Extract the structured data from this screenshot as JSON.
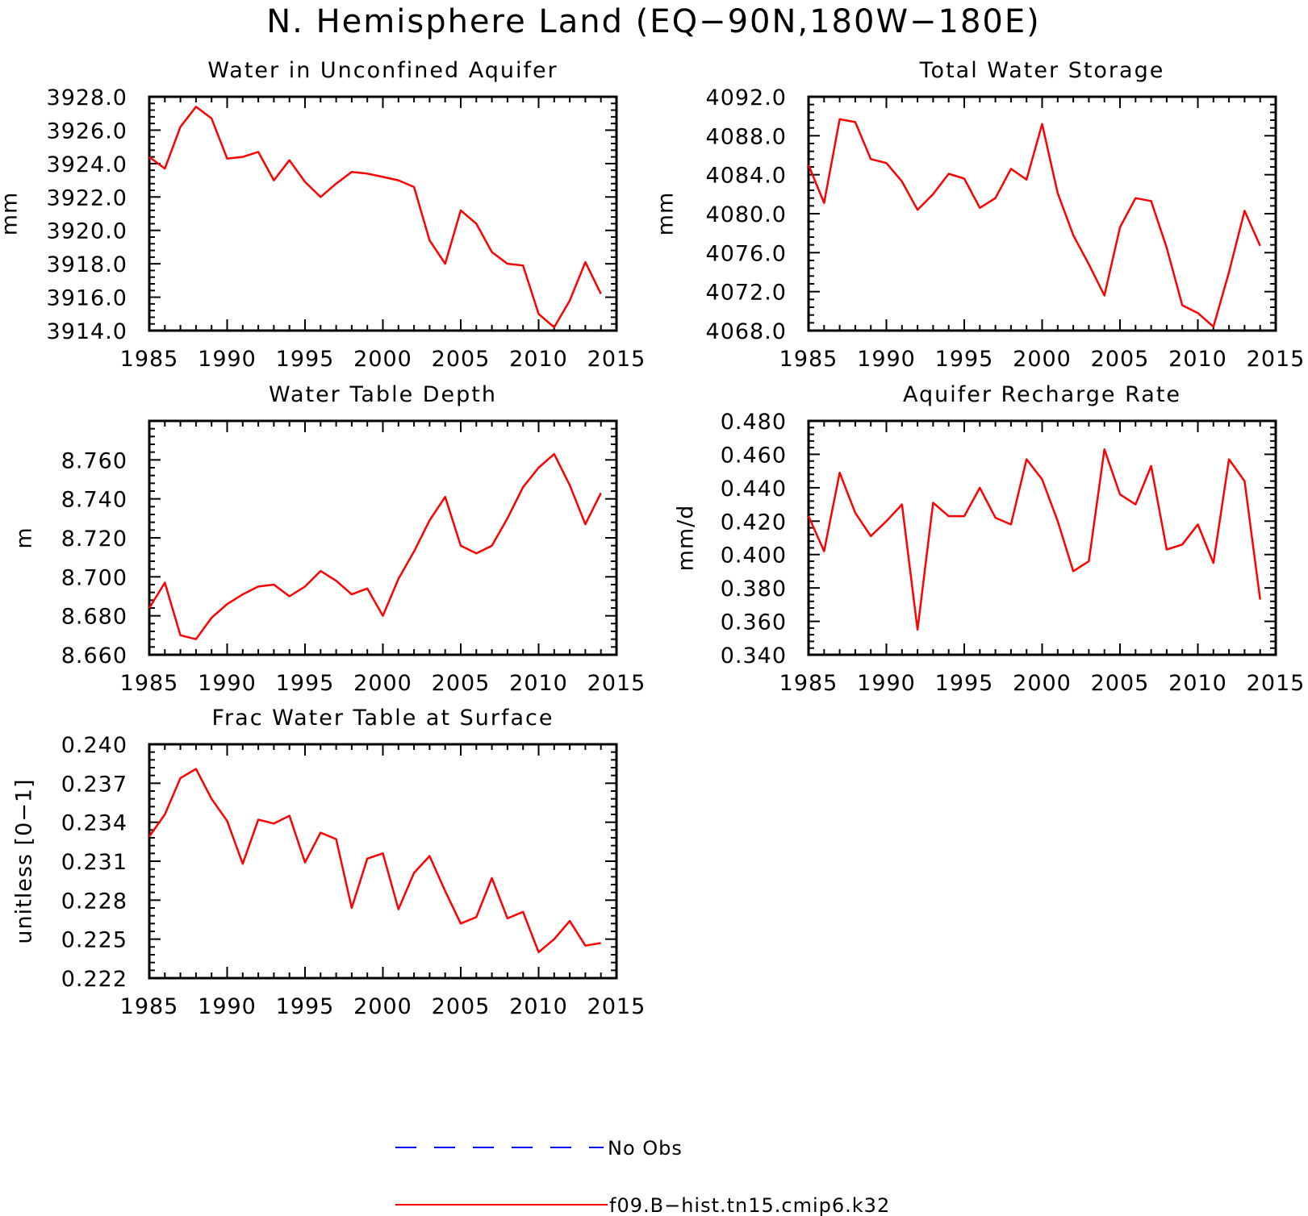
{
  "title": "N. Hemisphere Land (EQ−90N,180W−180E)",
  "series_color": "#ff0000",
  "obs_color": "#0000ff",
  "chart_data": [
    {
      "type": "line",
      "title": "Water in Unconfined Aquifer",
      "ylabel": "mm",
      "xlabel": "",
      "xlim": [
        1985,
        2015
      ],
      "ylim": [
        3914.0,
        3928.0
      ],
      "xticks": [
        1985,
        1990,
        1995,
        2000,
        2005,
        2010,
        2015
      ],
      "yticks": [
        "3914.0",
        "3916.0",
        "3918.0",
        "3920.0",
        "3922.0",
        "3924.0",
        "3926.0",
        "3928.0"
      ],
      "series": [
        {
          "name": "f09.B−hist.tn15.cmip6.k32",
          "x": [
            1985,
            1986,
            1987,
            1988,
            1989,
            1990,
            1991,
            1992,
            1993,
            1994,
            1995,
            1996,
            1997,
            1998,
            1999,
            2000,
            2001,
            2002,
            2003,
            2004,
            2005,
            2006,
            2007,
            2008,
            2009,
            2010,
            2011,
            2012,
            2013,
            2014
          ],
          "y": [
            3924.4,
            3923.7,
            3926.2,
            3927.4,
            3926.7,
            3924.3,
            3924.4,
            3924.7,
            3923.0,
            3924.2,
            3922.9,
            3922.0,
            3922.8,
            3923.5,
            3923.4,
            3923.2,
            3923.0,
            3922.6,
            3919.4,
            3918.0,
            3921.2,
            3920.4,
            3918.7,
            3918.0,
            3917.9,
            3915.0,
            3914.2,
            3915.8,
            3918.1,
            3916.2
          ]
        }
      ]
    },
    {
      "type": "line",
      "title": "Total Water Storage",
      "ylabel": "mm",
      "xlabel": "",
      "xlim": [
        1985,
        2015
      ],
      "ylim": [
        4068.0,
        4092.0
      ],
      "xticks": [
        1985,
        1990,
        1995,
        2000,
        2005,
        2010,
        2015
      ],
      "yticks": [
        "4068.0",
        "4072.0",
        "4076.0",
        "4080.0",
        "4084.0",
        "4088.0",
        "4092.0"
      ],
      "series": [
        {
          "name": "f09.B−hist.tn15.cmip6.k32",
          "x": [
            1985,
            1986,
            1987,
            1988,
            1989,
            1990,
            1991,
            1992,
            1993,
            1994,
            1995,
            1996,
            1997,
            1998,
            1999,
            2000,
            2001,
            2002,
            2003,
            2004,
            2005,
            2006,
            2007,
            2008,
            2009,
            2010,
            2011,
            2012,
            2013,
            2014
          ],
          "y": [
            4085.0,
            4081.1,
            4089.7,
            4089.4,
            4085.6,
            4085.2,
            4083.3,
            4080.4,
            4082.0,
            4084.1,
            4083.6,
            4080.6,
            4081.6,
            4084.6,
            4083.5,
            4089.2,
            4082.1,
            4077.8,
            4074.8,
            4071.6,
            4078.6,
            4081.6,
            4081.3,
            4076.5,
            4070.6,
            4069.8,
            4068.4,
            4074.0,
            4080.3,
            4076.7
          ]
        }
      ]
    },
    {
      "type": "line",
      "title": "Water Table Depth",
      "ylabel": "m",
      "xlabel": "",
      "xlim": [
        1985,
        2015
      ],
      "ylim": [
        8.66,
        8.78
      ],
      "xticks": [
        1985,
        1990,
        1995,
        2000,
        2005,
        2010,
        2015
      ],
      "yticks": [
        "8.660",
        "8.680",
        "8.700",
        "8.720",
        "8.740",
        "8.760"
      ],
      "series": [
        {
          "name": "f09.B−hist.tn15.cmip6.k32",
          "x": [
            1985,
            1986,
            1987,
            1988,
            1989,
            1990,
            1991,
            1992,
            1993,
            1994,
            1995,
            1996,
            1997,
            1998,
            1999,
            2000,
            2001,
            2002,
            2003,
            2004,
            2005,
            2006,
            2007,
            2008,
            2009,
            2010,
            2011,
            2012,
            2013,
            2014
          ],
          "y": [
            8.684,
            8.697,
            8.67,
            8.668,
            8.679,
            8.686,
            8.691,
            8.695,
            8.696,
            8.69,
            8.695,
            8.703,
            8.698,
            8.691,
            8.694,
            8.68,
            8.699,
            8.713,
            8.729,
            8.741,
            8.716,
            8.712,
            8.716,
            8.73,
            8.746,
            8.756,
            8.763,
            8.747,
            8.727,
            8.743
          ]
        }
      ]
    },
    {
      "type": "line",
      "title": "Aquifer Recharge Rate",
      "ylabel": "mm/d",
      "xlabel": "",
      "xlim": [
        1985,
        2015
      ],
      "ylim": [
        0.34,
        0.48
      ],
      "xticks": [
        1985,
        1990,
        1995,
        2000,
        2005,
        2010,
        2015
      ],
      "yticks": [
        "0.340",
        "0.360",
        "0.380",
        "0.400",
        "0.420",
        "0.440",
        "0.460",
        "0.480"
      ],
      "series": [
        {
          "name": "f09.B−hist.tn15.cmip6.k32",
          "x": [
            1985,
            1986,
            1987,
            1988,
            1989,
            1990,
            1991,
            1992,
            1993,
            1994,
            1995,
            1996,
            1997,
            1998,
            1999,
            2000,
            2001,
            2002,
            2003,
            2004,
            2005,
            2006,
            2007,
            2008,
            2009,
            2010,
            2011,
            2012,
            2013,
            2014
          ],
          "y": [
            0.423,
            0.402,
            0.449,
            0.425,
            0.411,
            0.42,
            0.43,
            0.355,
            0.431,
            0.423,
            0.423,
            0.44,
            0.422,
            0.418,
            0.457,
            0.445,
            0.42,
            0.39,
            0.396,
            0.463,
            0.436,
            0.43,
            0.453,
            0.403,
            0.406,
            0.418,
            0.395,
            0.457,
            0.444,
            0.373
          ]
        }
      ]
    },
    {
      "type": "line",
      "title": "Frac Water Table at Surface",
      "ylabel": "unitless [0−1]",
      "xlabel": "",
      "xlim": [
        1985,
        2015
      ],
      "ylim": [
        0.222,
        0.24
      ],
      "xticks": [
        1985,
        1990,
        1995,
        2000,
        2005,
        2010,
        2015
      ],
      "yticks": [
        "0.222",
        "0.225",
        "0.228",
        "0.231",
        "0.234",
        "0.237",
        "0.240"
      ],
      "series": [
        {
          "name": "f09.B−hist.tn15.cmip6.k32",
          "x": [
            1985,
            1986,
            1987,
            1988,
            1989,
            1990,
            1991,
            1992,
            1993,
            1994,
            1995,
            1996,
            1997,
            1998,
            1999,
            2000,
            2001,
            2002,
            2003,
            2004,
            2005,
            2006,
            2007,
            2008,
            2009,
            2010,
            2011,
            2012,
            2013,
            2014
          ],
          "y": [
            0.2329,
            0.2346,
            0.2374,
            0.2381,
            0.2358,
            0.2341,
            0.2308,
            0.2342,
            0.2339,
            0.2345,
            0.2309,
            0.2332,
            0.2327,
            0.2274,
            0.2312,
            0.2316,
            0.2273,
            0.2301,
            0.2314,
            0.2287,
            0.2262,
            0.2267,
            0.2297,
            0.2266,
            0.2271,
            0.224,
            0.225,
            0.2264,
            0.2245,
            0.2247
          ]
        }
      ]
    }
  ],
  "legend": [
    {
      "label": "No Obs",
      "style": "dashed",
      "color": "#0000ff"
    },
    {
      "label": "f09.B−hist.tn15.cmip6.k32",
      "style": "solid",
      "color": "#ff0000"
    }
  ]
}
